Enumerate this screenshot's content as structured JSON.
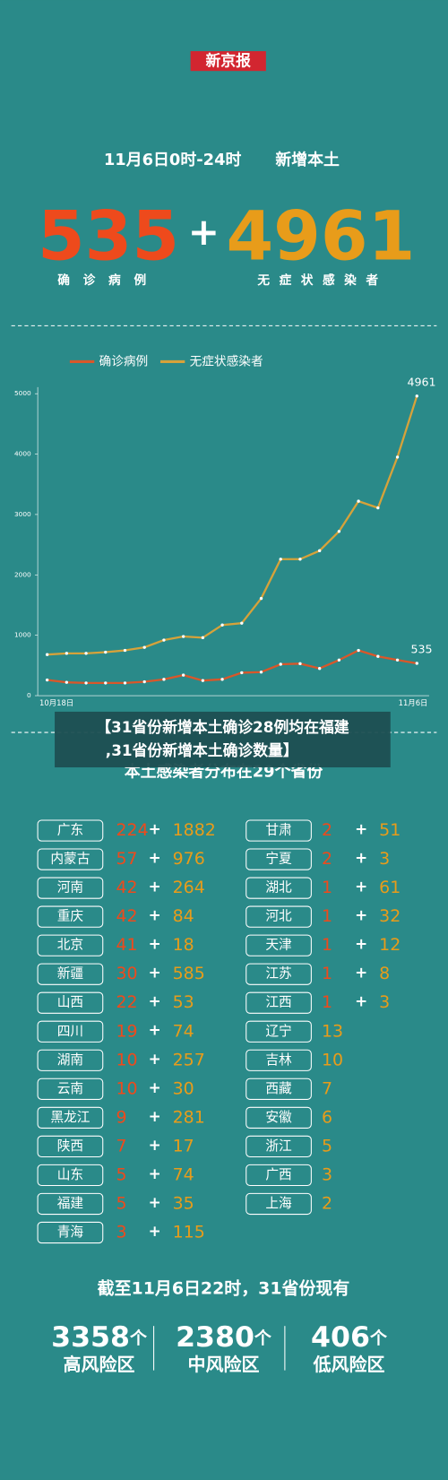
{
  "header": {
    "logo": "新京报",
    "date": "11月6日0时-24时",
    "heading": "新增本土",
    "confirmed": 535,
    "asymptomatic": 4961,
    "plus": "+",
    "confirmed_label": "确诊病例",
    "asymptomatic_label": "无症状感染者"
  },
  "chart_data": {
    "type": "line",
    "categories": [
      "10月18日",
      null,
      null,
      null,
      null,
      null,
      null,
      null,
      null,
      null,
      null,
      null,
      null,
      null,
      null,
      null,
      null,
      null,
      null,
      "11月6日"
    ],
    "series": [
      {
        "name": "确诊病例",
        "color": "#d9572a",
        "values": [
          260,
          220,
          210,
          210,
          210,
          230,
          270,
          340,
          250,
          270,
          380,
          390,
          520,
          530,
          450,
          590,
          750,
          650,
          590,
          535
        ]
      },
      {
        "name": "无症状感染者",
        "color": "#d6a23a",
        "values": [
          680,
          700,
          700,
          720,
          750,
          800,
          920,
          980,
          960,
          1170,
          1200,
          1610,
          2260,
          2260,
          2400,
          2720,
          3220,
          3110,
          3950,
          4961
        ]
      }
    ],
    "ylim": [
      0,
      5000
    ],
    "yticks": [
      0,
      1000,
      2000,
      3000,
      4000,
      5000
    ],
    "legend": "top"
  },
  "overlay_caption": [
    "【31省份新增本土确诊28例均在福建",
    ",31省份新增本土确诊数量】"
  ],
  "table": {
    "title": "本土感染者分布在29个省份",
    "left": [
      {
        "name": "广东",
        "confirmed": 224,
        "asymptomatic": 1882
      },
      {
        "name": "内蒙古",
        "confirmed": 57,
        "asymptomatic": 976
      },
      {
        "name": "河南",
        "confirmed": 42,
        "asymptomatic": 264
      },
      {
        "name": "重庆",
        "confirmed": 42,
        "asymptomatic": 84
      },
      {
        "name": "北京",
        "confirmed": 41,
        "asymptomatic": 18
      },
      {
        "name": "新疆",
        "confirmed": 30,
        "asymptomatic": 585
      },
      {
        "name": "山西",
        "confirmed": 22,
        "asymptomatic": 53
      },
      {
        "name": "四川",
        "confirmed": 19,
        "asymptomatic": 74
      },
      {
        "name": "湖南",
        "confirmed": 10,
        "asymptomatic": 257
      },
      {
        "name": "云南",
        "confirmed": 10,
        "asymptomatic": 30
      },
      {
        "name": "黑龙江",
        "confirmed": 9,
        "asymptomatic": 281
      },
      {
        "name": "陕西",
        "confirmed": 7,
        "asymptomatic": 17
      },
      {
        "name": "山东",
        "confirmed": 5,
        "asymptomatic": 74
      },
      {
        "name": "福建",
        "confirmed": 5,
        "asymptomatic": 35
      },
      {
        "name": "青海",
        "confirmed": 3,
        "asymptomatic": 115
      }
    ],
    "right": [
      {
        "name": "甘肃",
        "confirmed": 2,
        "asymptomatic": 51
      },
      {
        "name": "宁夏",
        "confirmed": 2,
        "asymptomatic": 3
      },
      {
        "name": "湖北",
        "confirmed": 1,
        "asymptomatic": 61
      },
      {
        "name": "河北",
        "confirmed": 1,
        "asymptomatic": 32
      },
      {
        "name": "天津",
        "confirmed": 1,
        "asymptomatic": 12
      },
      {
        "name": "江苏",
        "confirmed": 1,
        "asymptomatic": 8
      },
      {
        "name": "江西",
        "confirmed": 1,
        "asymptomatic": 3
      },
      {
        "name": "辽宁",
        "asymptomatic": 13
      },
      {
        "name": "吉林",
        "asymptomatic": 10
      },
      {
        "name": "西藏",
        "asymptomatic": 7
      },
      {
        "name": "安徽",
        "asymptomatic": 6
      },
      {
        "name": "浙江",
        "asymptomatic": 5
      },
      {
        "name": "广西",
        "asymptomatic": 3
      },
      {
        "name": "上海",
        "asymptomatic": 2
      }
    ]
  },
  "footer": {
    "title": "截至11月6日22时，31省份现有",
    "unit": "个",
    "items": [
      {
        "value": 3358,
        "label": "高风险区"
      },
      {
        "value": 2380,
        "label": "中风险区"
      },
      {
        "value": 406,
        "label": "低风险区"
      }
    ]
  }
}
